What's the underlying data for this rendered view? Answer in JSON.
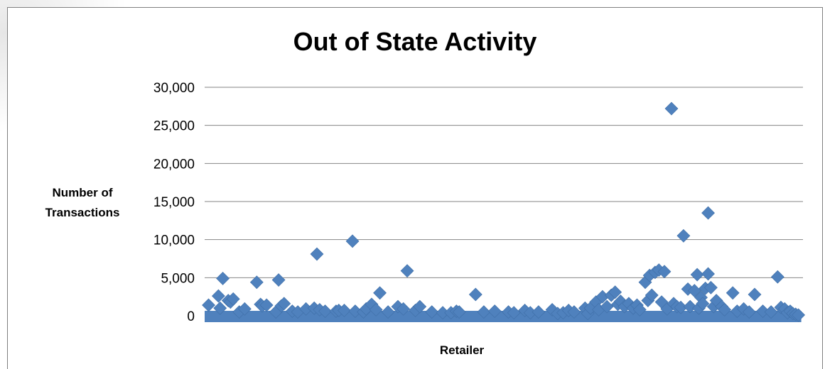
{
  "chart_data": {
    "type": "scatter",
    "title": "Out of State Activity",
    "xlabel": "Retailer",
    "ylabel": "Number of Transactions",
    "ylim": [
      0,
      30000
    ],
    "yticks": [
      "0",
      "5,000",
      "10,000",
      "15,000",
      "20,000",
      "25,000",
      "30,000"
    ],
    "grid": true,
    "legend": "none",
    "marker": "diamond",
    "color": "#4f81bd",
    "x_count": 1000,
    "points": [
      [
        2,
        1400
      ],
      [
        20,
        2600
      ],
      [
        23,
        1000
      ],
      [
        28,
        4900
      ],
      [
        38,
        2000
      ],
      [
        42,
        1800
      ],
      [
        47,
        2200
      ],
      [
        58,
        500
      ],
      [
        68,
        900
      ],
      [
        90,
        4400
      ],
      [
        97,
        1500
      ],
      [
        100,
        1300
      ],
      [
        108,
        1400
      ],
      [
        125,
        500
      ],
      [
        130,
        4700
      ],
      [
        135,
        1300
      ],
      [
        140,
        1600
      ],
      [
        155,
        600
      ],
      [
        165,
        500
      ],
      [
        180,
        900
      ],
      [
        195,
        1000
      ],
      [
        200,
        8100
      ],
      [
        205,
        800
      ],
      [
        215,
        600
      ],
      [
        235,
        600
      ],
      [
        240,
        700
      ],
      [
        250,
        700
      ],
      [
        265,
        9800
      ],
      [
        270,
        600
      ],
      [
        285,
        500
      ],
      [
        290,
        900
      ],
      [
        300,
        1500
      ],
      [
        308,
        800
      ],
      [
        315,
        3000
      ],
      [
        330,
        500
      ],
      [
        348,
        1200
      ],
      [
        358,
        900
      ],
      [
        365,
        5900
      ],
      [
        380,
        700
      ],
      [
        388,
        1200
      ],
      [
        410,
        500
      ],
      [
        430,
        400
      ],
      [
        445,
        400
      ],
      [
        455,
        600
      ],
      [
        460,
        500
      ],
      [
        490,
        2800
      ],
      [
        505,
        500
      ],
      [
        525,
        600
      ],
      [
        550,
        500
      ],
      [
        560,
        400
      ],
      [
        580,
        700
      ],
      [
        590,
        400
      ],
      [
        605,
        500
      ],
      [
        630,
        800
      ],
      [
        640,
        300
      ],
      [
        650,
        400
      ],
      [
        660,
        700
      ],
      [
        670,
        500
      ],
      [
        690,
        1000
      ],
      [
        695,
        300
      ],
      [
        700,
        1000
      ],
      [
        710,
        1800
      ],
      [
        715,
        800
      ],
      [
        722,
        2500
      ],
      [
        730,
        1200
      ],
      [
        738,
        2700
      ],
      [
        745,
        3100
      ],
      [
        750,
        1500
      ],
      [
        755,
        1900
      ],
      [
        762,
        1200
      ],
      [
        770,
        1600
      ],
      [
        778,
        1000
      ],
      [
        785,
        1400
      ],
      [
        790,
        800
      ],
      [
        800,
        4400
      ],
      [
        805,
        2000
      ],
      [
        808,
        5300
      ],
      [
        812,
        2700
      ],
      [
        818,
        5700
      ],
      [
        825,
        6000
      ],
      [
        830,
        1800
      ],
      [
        835,
        5800
      ],
      [
        840,
        900
      ],
      [
        848,
        27200
      ],
      [
        852,
        1600
      ],
      [
        858,
        1200
      ],
      [
        865,
        1100
      ],
      [
        870,
        10500
      ],
      [
        878,
        3500
      ],
      [
        882,
        1200
      ],
      [
        890,
        3300
      ],
      [
        895,
        5400
      ],
      [
        898,
        1000
      ],
      [
        902,
        2400
      ],
      [
        905,
        1600
      ],
      [
        910,
        3600
      ],
      [
        915,
        5500
      ],
      [
        915,
        13500
      ],
      [
        920,
        3700
      ],
      [
        925,
        1200
      ],
      [
        930,
        2000
      ],
      [
        940,
        1200
      ],
      [
        945,
        800
      ],
      [
        960,
        3000
      ],
      [
        968,
        600
      ],
      [
        980,
        900
      ],
      [
        990,
        500
      ],
      [
        1000,
        2800
      ],
      [
        1015,
        600
      ],
      [
        1030,
        500
      ],
      [
        1042,
        5100
      ],
      [
        1048,
        1100
      ],
      [
        1055,
        900
      ],
      [
        1060,
        400
      ],
      [
        1065,
        600
      ],
      [
        1070,
        300
      ],
      [
        1075,
        200
      ],
      [
        1080,
        100
      ]
    ]
  }
}
